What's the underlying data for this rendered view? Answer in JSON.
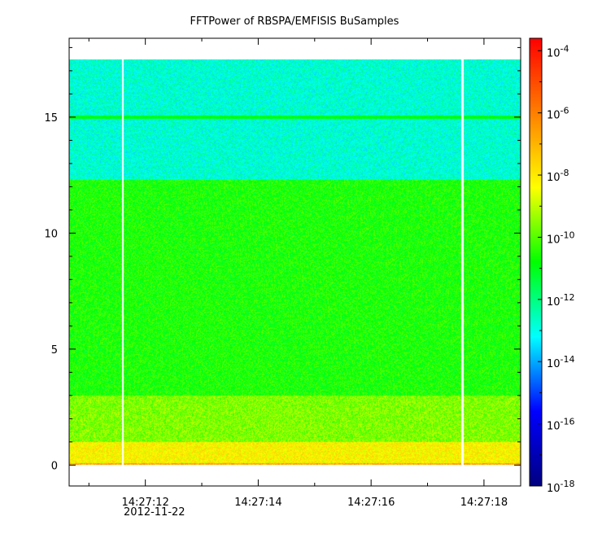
{
  "chart_data": {
    "type": "heatmap",
    "title": "FFTPower of RBSPA/EMFISIS  BuSamples",
    "xlabel": "",
    "ylabel": "",
    "x_ticks": [
      {
        "value": 12,
        "label": "14:27:12"
      },
      {
        "value": 14,
        "label": "14:27:14"
      },
      {
        "value": 16,
        "label": "14:27:16"
      },
      {
        "value": 18,
        "label": "14:27:18"
      }
    ],
    "x_date_label": "2012-11-22",
    "x_range_seconds": [
      10.65,
      18.65
    ],
    "y_ticks": [
      0,
      5,
      10,
      15
    ],
    "ylim": [
      -0.9,
      18.4
    ],
    "data_frequency_max": 17.5,
    "gap_times_seconds": [
      11.6,
      17.62
    ],
    "colorbar": {
      "scale": "log",
      "range_exponent": [
        -18,
        -3.6
      ],
      "ticks": [
        {
          "exp": -4,
          "base": "10",
          "sup": "-4"
        },
        {
          "exp": -6,
          "base": "10",
          "sup": "-6"
        },
        {
          "exp": -8,
          "base": "10",
          "sup": "-8"
        },
        {
          "exp": -10,
          "base": "10",
          "sup": "-10"
        },
        {
          "exp": -12,
          "base": "10",
          "sup": "-12"
        },
        {
          "exp": -14,
          "base": "10",
          "sup": "-14"
        },
        {
          "exp": -16,
          "base": "10",
          "sup": "-16"
        },
        {
          "exp": -18,
          "base": "10",
          "sup": "-18"
        }
      ],
      "colors": [
        "#00007f",
        "#0000ff",
        "#00ffff",
        "#00ff00",
        "#ffff00",
        "#ff7f00",
        "#ff0000"
      ]
    },
    "bands": [
      {
        "f_from": 0.0,
        "f_to": 0.1,
        "log_power": -6.8
      },
      {
        "f_from": 0.1,
        "f_to": 1.0,
        "log_power": -8.2
      },
      {
        "f_from": 1.0,
        "f_to": 3.0,
        "log_power": -9.6
      },
      {
        "f_from": 3.0,
        "f_to": 12.3,
        "log_power": -10.6
      },
      {
        "f_from": 12.3,
        "f_to": 17.5,
        "log_power": -12.8
      }
    ],
    "line_feature": {
      "f": 15.0,
      "log_power": -11.0
    }
  }
}
